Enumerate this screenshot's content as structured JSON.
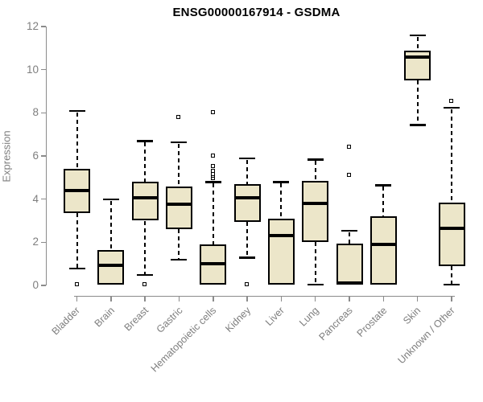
{
  "chart_data": {
    "type": "boxplot",
    "title": "ENSG00000167914 - GSDMA",
    "ylabel": "Expression",
    "xlabel": "",
    "ylim": [
      0,
      12
    ],
    "yticks": [
      0,
      2,
      4,
      6,
      8,
      10,
      12
    ],
    "grid": false,
    "legend": "none",
    "categories": [
      "Bladder",
      "Brain",
      "Breast",
      "Gastric",
      "Hematopoietic cells",
      "Kidney",
      "Liver",
      "Lung",
      "Pancreas",
      "Prostate",
      "Skin",
      "Unknown / Other"
    ],
    "boxes": [
      {
        "category": "Bladder",
        "whisker_low": 0.8,
        "q1": 3.35,
        "median": 4.4,
        "q3": 5.4,
        "whisker_high": 8.1,
        "outliers": [
          0.05
        ]
      },
      {
        "category": "Brain",
        "whisker_low": 0.05,
        "q1": 0.05,
        "median": 0.95,
        "q3": 1.65,
        "whisker_high": 4.0,
        "outliers": []
      },
      {
        "category": "Breast",
        "whisker_low": 0.5,
        "q1": 3.0,
        "median": 4.05,
        "q3": 4.8,
        "whisker_high": 6.7,
        "outliers": [
          0.05
        ]
      },
      {
        "category": "Gastric",
        "whisker_low": 1.2,
        "q1": 2.6,
        "median": 3.75,
        "q3": 4.6,
        "whisker_high": 6.65,
        "outliers": [
          7.8
        ]
      },
      {
        "category": "Hematopoietic cells",
        "whisker_low": 0.02,
        "q1": 0.02,
        "median": 1.0,
        "q3": 1.9,
        "whisker_high": 4.8,
        "outliers": [
          4.95,
          5.05,
          5.15,
          5.3,
          5.5,
          6.0,
          8.0
        ]
      },
      {
        "category": "Kidney",
        "whisker_low": 1.3,
        "q1": 2.95,
        "median": 4.05,
        "q3": 4.7,
        "whisker_high": 5.9,
        "outliers": [
          0.05
        ]
      },
      {
        "category": "Liver",
        "whisker_low": 0.02,
        "q1": 0.02,
        "median": 2.3,
        "q3": 3.1,
        "whisker_high": 4.8,
        "outliers": []
      },
      {
        "category": "Lung",
        "whisker_low": 0.05,
        "q1": 2.0,
        "median": 3.8,
        "q3": 4.85,
        "whisker_high": 5.85,
        "outliers": []
      },
      {
        "category": "Pancreas",
        "whisker_low": 0.02,
        "q1": 0.02,
        "median": 0.1,
        "q3": 1.95,
        "whisker_high": 2.55,
        "outliers": [
          5.1,
          6.4
        ]
      },
      {
        "category": "Prostate",
        "whisker_low": 0.02,
        "q1": 0.02,
        "median": 1.9,
        "q3": 3.2,
        "whisker_high": 4.65,
        "outliers": []
      },
      {
        "category": "Skin",
        "whisker_low": 7.45,
        "q1": 9.5,
        "median": 10.6,
        "q3": 10.9,
        "whisker_high": 11.6,
        "outliers": []
      },
      {
        "category": "Unknown / Other",
        "whisker_low": 0.05,
        "q1": 0.9,
        "median": 2.65,
        "q3": 3.85,
        "whisker_high": 8.25,
        "outliers": [
          8.55
        ]
      }
    ],
    "colors": {
      "box_fill": "#ece6c9",
      "box_stroke": "#000000",
      "axis": "#8b8b8b",
      "tick_labels": "#7e7e7e",
      "title": "#000000",
      "background": "#ffffff"
    }
  }
}
